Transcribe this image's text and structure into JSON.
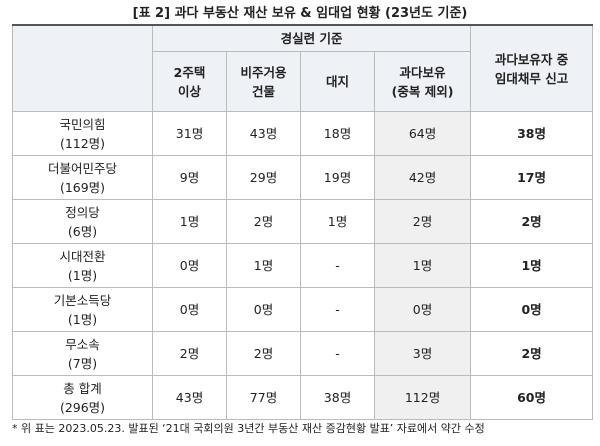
{
  "title": "[표 2] 과다 부동산 재산 보유 & 임대업 현황 (23년도 기준)",
  "header": {
    "group": "경실련 기준",
    "columns": [
      [
        "2주택",
        "이상"
      ],
      [
        "비주거용",
        "건물"
      ],
      [
        "대지"
      ],
      [
        "과다보유",
        "(중복 제외)"
      ]
    ],
    "last": [
      "과다보유자 중",
      "임대채무 신고"
    ]
  },
  "rows": [
    {
      "party": "국민의힘",
      "count": "(112명)",
      "cells": [
        "31명",
        "43명",
        "18명",
        "64명",
        "38명"
      ]
    },
    {
      "party": "더불어민주당",
      "count": "(169명)",
      "cells": [
        "9명",
        "29명",
        "19명",
        "42명",
        "17명"
      ]
    },
    {
      "party": "정의당",
      "count": "(6명)",
      "cells": [
        "1명",
        "2명",
        "1명",
        "2명",
        "2명"
      ]
    },
    {
      "party": "시대전환",
      "count": "(1명)",
      "cells": [
        "0명",
        "1명",
        "-",
        "1명",
        "1명"
      ]
    },
    {
      "party": "기본소득당",
      "count": "(1명)",
      "cells": [
        "0명",
        "0명",
        "-",
        "0명",
        "0명"
      ]
    },
    {
      "party": "무소속",
      "count": "(7명)",
      "cells": [
        "2명",
        "2명",
        "-",
        "3명",
        "2명"
      ]
    },
    {
      "party": "총 합계",
      "count": "(296명)",
      "cells": [
        "43명",
        "77명",
        "38명",
        "112명",
        "60명"
      ]
    }
  ],
  "footnote": "* 위 표는 2023.05.23. 발표된 ‘21대 국회의원 3년간 부동산 재산 증감현황 발표’ 자료에서 약간 수정"
}
